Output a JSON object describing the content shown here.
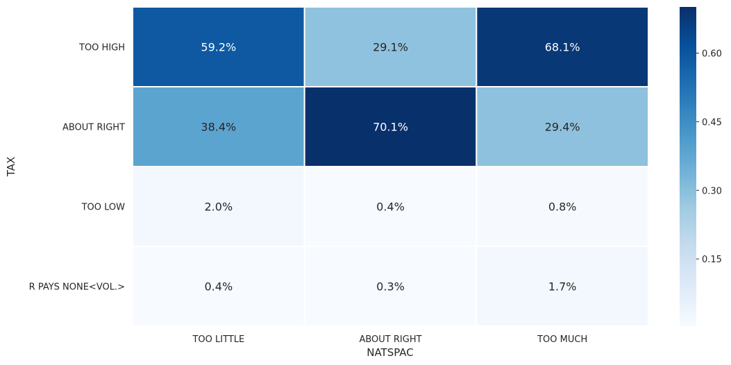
{
  "chart_data": {
    "type": "heatmap",
    "xlabel": "NATSPAC",
    "ylabel": "TAX",
    "x_categories": [
      "TOO LITTLE",
      "ABOUT RIGHT",
      "TOO MUCH"
    ],
    "y_categories": [
      "TOO HIGH",
      "ABOUT RIGHT",
      "TOO LOW",
      "R PAYS NONE<VOL.>"
    ],
    "values": [
      [
        0.592,
        0.291,
        0.681
      ],
      [
        0.384,
        0.701,
        0.294
      ],
      [
        0.02,
        0.004,
        0.008
      ],
      [
        0.004,
        0.003,
        0.017
      ]
    ],
    "cell_labels": [
      [
        "59.2%",
        "29.1%",
        "68.1%"
      ],
      [
        "38.4%",
        "70.1%",
        "29.4%"
      ],
      [
        "2.0%",
        "0.4%",
        "0.8%"
      ],
      [
        "0.4%",
        "0.3%",
        "1.7%"
      ]
    ],
    "colorbar": {
      "min": 0.003,
      "max": 0.701,
      "ticks": [
        0.15,
        0.3,
        0.45,
        0.6
      ],
      "tick_labels": [
        "0.15",
        "0.30",
        "0.45",
        "0.60"
      ],
      "colormap": "Blues"
    }
  }
}
